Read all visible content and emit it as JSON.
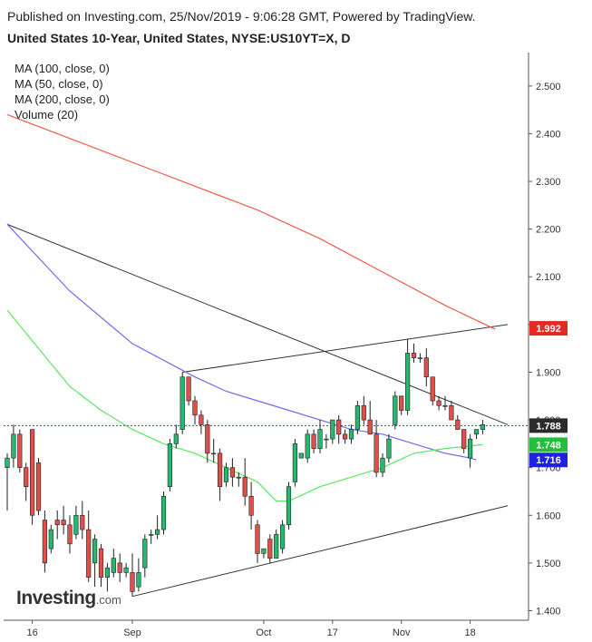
{
  "header": {
    "published": "Published on Investing.com, 25/Nov/2019 - 9:06:28 GMT, Powered by TradingView.",
    "title": "United States 10-Year, United States, NYSE:US10YT=X, D"
  },
  "legend": {
    "items": [
      "MA (100, close, 0)",
      "MA (50, close, 0)",
      "MA (200, close, 0)",
      "Volume (20)"
    ]
  },
  "logo": {
    "text": "Investing",
    "suffix": ".com"
  },
  "colors": {
    "up": "#26b86e",
    "down": "#e0504a",
    "ma100": "#6c6cf0",
    "ma50": "#5ee65e",
    "ma200": "#f05a4a",
    "trendline": "#333333",
    "price_tag": "#1e1e1e"
  },
  "chart_data": {
    "type": "candlestick",
    "ylim": [
      1.38,
      2.57
    ],
    "yticks": [
      "2.500",
      "2.400",
      "2.300",
      "2.200",
      "2.100",
      "2.000",
      "1.900",
      "1.800",
      "1.700",
      "1.600",
      "1.500",
      "1.400"
    ],
    "xticks": [
      {
        "label": "16",
        "i": 4
      },
      {
        "label": "Sep",
        "i": 20
      },
      {
        "label": "Oct",
        "i": 41
      },
      {
        "label": "17",
        "i": 52
      },
      {
        "label": "Nov",
        "i": 63
      },
      {
        "label": "18",
        "i": 74
      }
    ],
    "price_labels": [
      {
        "value": "1.992",
        "y": 1.992,
        "color": "#e32b22"
      },
      {
        "value": "1.788",
        "y": 1.788,
        "color": "#2b2b2b"
      },
      {
        "value": "1.748",
        "y": 1.748,
        "color": "#22c03a"
      },
      {
        "value": "1.716",
        "y": 1.716,
        "color": "#2020e0"
      }
    ],
    "candles": [
      {
        "o": 1.7,
        "h": 1.73,
        "l": 1.61,
        "c": 1.72
      },
      {
        "o": 1.72,
        "h": 1.79,
        "l": 1.7,
        "c": 1.77
      },
      {
        "o": 1.77,
        "h": 1.78,
        "l": 1.69,
        "c": 1.7
      },
      {
        "o": 1.7,
        "h": 1.71,
        "l": 1.63,
        "c": 1.66
      },
      {
        "o": 1.78,
        "h": 1.78,
        "l": 1.58,
        "c": 1.6
      },
      {
        "o": 1.71,
        "h": 1.72,
        "l": 1.6,
        "c": 1.61
      },
      {
        "o": 1.59,
        "h": 1.61,
        "l": 1.48,
        "c": 1.5
      },
      {
        "o": 1.53,
        "h": 1.58,
        "l": 1.52,
        "c": 1.57
      },
      {
        "o": 1.59,
        "h": 1.61,
        "l": 1.55,
        "c": 1.58
      },
      {
        "o": 1.59,
        "h": 1.62,
        "l": 1.56,
        "c": 1.58
      },
      {
        "o": 1.58,
        "h": 1.6,
        "l": 1.52,
        "c": 1.54
      },
      {
        "o": 1.56,
        "h": 1.62,
        "l": 1.55,
        "c": 1.6
      },
      {
        "o": 1.6,
        "h": 1.63,
        "l": 1.55,
        "c": 1.57
      },
      {
        "o": 1.57,
        "h": 1.61,
        "l": 1.46,
        "c": 1.47
      },
      {
        "o": 1.5,
        "h": 1.56,
        "l": 1.45,
        "c": 1.55
      },
      {
        "o": 1.53,
        "h": 1.54,
        "l": 1.45,
        "c": 1.47
      },
      {
        "o": 1.47,
        "h": 1.5,
        "l": 1.44,
        "c": 1.49
      },
      {
        "o": 1.48,
        "h": 1.53,
        "l": 1.47,
        "c": 1.51
      },
      {
        "o": 1.5,
        "h": 1.52,
        "l": 1.46,
        "c": 1.48
      },
      {
        "o": 1.48,
        "h": 1.5,
        "l": 1.47,
        "c": 1.49
      },
      {
        "o": 1.48,
        "h": 1.52,
        "l": 1.43,
        "c": 1.44
      },
      {
        "o": 1.45,
        "h": 1.51,
        "l": 1.44,
        "c": 1.48
      },
      {
        "o": 1.49,
        "h": 1.56,
        "l": 1.47,
        "c": 1.55
      },
      {
        "o": 1.56,
        "h": 1.57,
        "l": 1.54,
        "c": 1.56
      },
      {
        "o": 1.56,
        "h": 1.6,
        "l": 1.55,
        "c": 1.57
      },
      {
        "o": 1.57,
        "h": 1.65,
        "l": 1.56,
        "c": 1.64
      },
      {
        "o": 1.66,
        "h": 1.76,
        "l": 1.65,
        "c": 1.75
      },
      {
        "o": 1.75,
        "h": 1.79,
        "l": 1.74,
        "c": 1.77
      },
      {
        "o": 1.78,
        "h": 1.9,
        "l": 1.77,
        "c": 1.89
      },
      {
        "o": 1.89,
        "h": 1.89,
        "l": 1.83,
        "c": 1.84
      },
      {
        "o": 1.84,
        "h": 1.85,
        "l": 1.79,
        "c": 1.81
      },
      {
        "o": 1.81,
        "h": 1.82,
        "l": 1.77,
        "c": 1.79
      },
      {
        "o": 1.79,
        "h": 1.8,
        "l": 1.71,
        "c": 1.73
      },
      {
        "o": 1.73,
        "h": 1.76,
        "l": 1.71,
        "c": 1.73
      },
      {
        "o": 1.73,
        "h": 1.74,
        "l": 1.63,
        "c": 1.66
      },
      {
        "o": 1.67,
        "h": 1.71,
        "l": 1.66,
        "c": 1.7
      },
      {
        "o": 1.7,
        "h": 1.72,
        "l": 1.66,
        "c": 1.68
      },
      {
        "o": 1.68,
        "h": 1.69,
        "l": 1.66,
        "c": 1.68
      },
      {
        "o": 1.68,
        "h": 1.72,
        "l": 1.62,
        "c": 1.64
      },
      {
        "o": 1.64,
        "h": 1.67,
        "l": 1.57,
        "c": 1.6
      },
      {
        "o": 1.58,
        "h": 1.59,
        "l": 1.5,
        "c": 1.52
      },
      {
        "o": 1.52,
        "h": 1.53,
        "l": 1.51,
        "c": 1.53
      },
      {
        "o": 1.55,
        "h": 1.56,
        "l": 1.5,
        "c": 1.51
      },
      {
        "o": 1.51,
        "h": 1.57,
        "l": 1.51,
        "c": 1.56
      },
      {
        "o": 1.53,
        "h": 1.59,
        "l": 1.52,
        "c": 1.58
      },
      {
        "o": 1.58,
        "h": 1.67,
        "l": 1.57,
        "c": 1.66
      },
      {
        "o": 1.67,
        "h": 1.76,
        "l": 1.66,
        "c": 1.75
      },
      {
        "o": 1.72,
        "h": 1.73,
        "l": 1.72,
        "c": 1.73
      },
      {
        "o": 1.72,
        "h": 1.78,
        "l": 1.71,
        "c": 1.77
      },
      {
        "o": 1.77,
        "h": 1.78,
        "l": 1.73,
        "c": 1.74
      },
      {
        "o": 1.74,
        "h": 1.8,
        "l": 1.73,
        "c": 1.78
      },
      {
        "o": 1.76,
        "h": 1.77,
        "l": 1.74,
        "c": 1.76
      },
      {
        "o": 1.76,
        "h": 1.8,
        "l": 1.75,
        "c": 1.8
      },
      {
        "o": 1.8,
        "h": 1.81,
        "l": 1.75,
        "c": 1.77
      },
      {
        "o": 1.77,
        "h": 1.78,
        "l": 1.75,
        "c": 1.76
      },
      {
        "o": 1.76,
        "h": 1.79,
        "l": 1.75,
        "c": 1.78
      },
      {
        "o": 1.78,
        "h": 1.84,
        "l": 1.77,
        "c": 1.83
      },
      {
        "o": 1.83,
        "h": 1.85,
        "l": 1.79,
        "c": 1.8
      },
      {
        "o": 1.8,
        "h": 1.84,
        "l": 1.78,
        "c": 1.77
      },
      {
        "o": 1.77,
        "h": 1.8,
        "l": 1.68,
        "c": 1.69
      },
      {
        "o": 1.69,
        "h": 1.73,
        "l": 1.68,
        "c": 1.72
      },
      {
        "o": 1.72,
        "h": 1.77,
        "l": 1.71,
        "c": 1.76
      },
      {
        "o": 1.79,
        "h": 1.86,
        "l": 1.78,
        "c": 1.85
      },
      {
        "o": 1.85,
        "h": 1.84,
        "l": 1.81,
        "c": 1.82
      },
      {
        "o": 1.82,
        "h": 1.97,
        "l": 1.81,
        "c": 1.94
      },
      {
        "o": 1.94,
        "h": 1.96,
        "l": 1.92,
        "c": 1.93
      },
      {
        "o": 1.93,
        "h": 1.94,
        "l": 1.92,
        "c": 1.93
      },
      {
        "o": 1.93,
        "h": 1.95,
        "l": 1.87,
        "c": 1.89
      },
      {
        "o": 1.89,
        "h": 1.89,
        "l": 1.83,
        "c": 1.84
      },
      {
        "o": 1.84,
        "h": 1.85,
        "l": 1.82,
        "c": 1.83
      },
      {
        "o": 1.83,
        "h": 1.85,
        "l": 1.82,
        "c": 1.83
      },
      {
        "o": 1.83,
        "h": 1.84,
        "l": 1.8,
        "c": 1.8
      },
      {
        "o": 1.8,
        "h": 1.81,
        "l": 1.78,
        "c": 1.78
      },
      {
        "o": 1.78,
        "h": 1.77,
        "l": 1.73,
        "c": 1.74
      },
      {
        "o": 1.72,
        "h": 1.77,
        "l": 1.7,
        "c": 1.76
      },
      {
        "o": 1.77,
        "h": 1.78,
        "l": 1.76,
        "c": 1.78
      },
      {
        "o": 1.78,
        "h": 1.8,
        "l": 1.77,
        "c": 1.79
      }
    ],
    "ma200": [
      [
        0,
        2.44
      ],
      [
        10,
        2.39
      ],
      [
        20,
        2.34
      ],
      [
        30,
        2.29
      ],
      [
        40,
        2.24
      ],
      [
        50,
        2.18
      ],
      [
        60,
        2.11
      ],
      [
        70,
        2.04
      ],
      [
        78,
        1.99
      ]
    ],
    "ma100": [
      [
        0,
        2.21
      ],
      [
        10,
        2.07
      ],
      [
        20,
        1.96
      ],
      [
        30,
        1.89
      ],
      [
        35,
        1.86
      ],
      [
        40,
        1.84
      ],
      [
        45,
        1.82
      ],
      [
        50,
        1.8
      ],
      [
        55,
        1.78
      ],
      [
        60,
        1.77
      ],
      [
        65,
        1.75
      ],
      [
        70,
        1.73
      ],
      [
        74,
        1.72
      ],
      [
        75,
        1.716
      ]
    ],
    "ma50": [
      [
        0,
        2.03
      ],
      [
        5,
        1.95
      ],
      [
        10,
        1.87
      ],
      [
        15,
        1.82
      ],
      [
        20,
        1.78
      ],
      [
        25,
        1.75
      ],
      [
        30,
        1.73
      ],
      [
        35,
        1.7
      ],
      [
        40,
        1.67
      ],
      [
        43,
        1.63
      ],
      [
        45,
        1.63
      ],
      [
        50,
        1.66
      ],
      [
        55,
        1.68
      ],
      [
        60,
        1.7
      ],
      [
        65,
        1.73
      ],
      [
        70,
        1.74
      ],
      [
        76,
        1.748
      ]
    ],
    "trendlines": [
      {
        "from": [
          0,
          2.21
        ],
        "to": [
          80,
          1.79
        ]
      },
      {
        "from": [
          28,
          1.9
        ],
        "to": [
          80,
          2.0
        ]
      },
      {
        "from": [
          20,
          1.43
        ],
        "to": [
          80,
          1.62
        ]
      }
    ],
    "last_price": 1.788
  }
}
